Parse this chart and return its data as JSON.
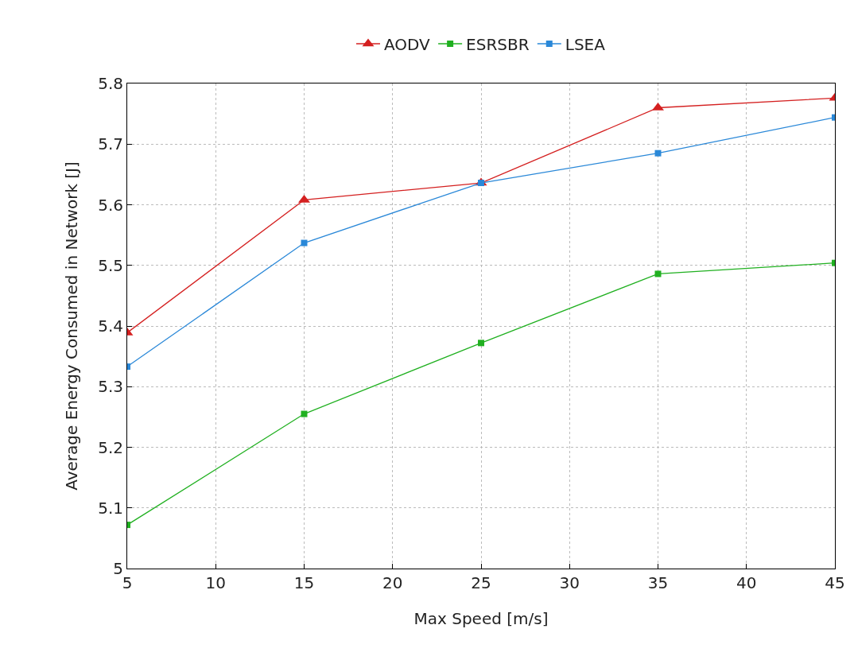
{
  "chart_data": {
    "type": "line",
    "xlabel": "Max Speed [m/s]",
    "ylabel": "Average Energy Consumed in Network [J]",
    "x": [
      5,
      15,
      25,
      35,
      45
    ],
    "xlim": [
      5,
      45
    ],
    "xticks": [
      5,
      10,
      15,
      20,
      25,
      30,
      35,
      40,
      45
    ],
    "ylim": [
      5,
      5.8
    ],
    "yticks": [
      5,
      5.1,
      5.2,
      5.3,
      5.4,
      5.5,
      5.6,
      5.7,
      5.8
    ],
    "grid": true,
    "legend": "top",
    "line_style": "solid",
    "series": [
      {
        "name": "AODV",
        "color": "#d42020",
        "marker": "triangle",
        "values": [
          5.389,
          5.608,
          5.636,
          5.76,
          5.776
        ]
      },
      {
        "name": "ESRSBR",
        "color": "#20b020",
        "marker": "square",
        "values": [
          5.072,
          5.255,
          5.372,
          5.486,
          5.504
        ]
      },
      {
        "name": "LSEA",
        "color": "#2a88d8",
        "marker": "square",
        "values": [
          5.333,
          5.537,
          5.636,
          5.685,
          5.744
        ]
      }
    ]
  }
}
